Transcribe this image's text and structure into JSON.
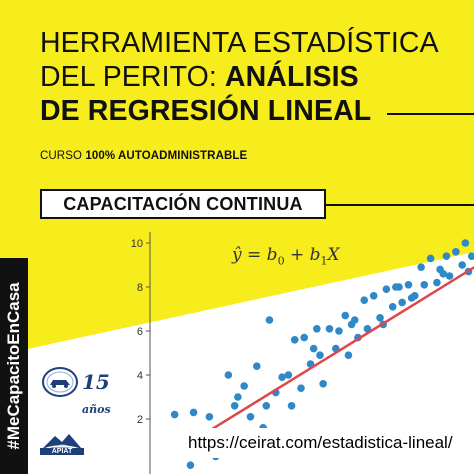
{
  "title": {
    "line1": "HERRAMIENTA ESTADÍSTICA",
    "line2_regular": "DEL PERITO: ",
    "line2_bold": "ANÁLISIS",
    "line3": "DE REGRESIÓN LINEAL"
  },
  "course": {
    "prefix": "CURSO ",
    "bold": "100% AUTOADMINISTRABLE"
  },
  "badge": "CAPACITACIÓN CONTINUA",
  "hashtag": "#MeCapacitoEnCasa",
  "url": "https://ceirat.com/estadistica-lineal/",
  "logos": {
    "anniversary_number": "15",
    "anniversary_word": "años",
    "org_name": "APIAT"
  },
  "formula": {
    "lhs": "ŷ",
    "eq": " = ",
    "b0": "b",
    "b0_sub": "0",
    "plus": " + ",
    "b1": "b",
    "b1_sub": "1",
    "x": "X"
  },
  "colors": {
    "accent_yellow": "#f7ec1c",
    "point_blue": "#2f88c7",
    "fit_line_red": "#e0474c",
    "ink": "#111111",
    "logo_blue": "#1d3f7a"
  },
  "chart_data": {
    "type": "scatter",
    "title": "",
    "xlabel": "",
    "ylabel": "",
    "yticks": [
      2,
      4,
      6,
      8,
      10
    ],
    "ylim": [
      -0.5,
      10.5
    ],
    "xlim": [
      0,
      10
    ],
    "grid": false,
    "series": [
      {
        "values_x": [
          0.4,
          0.9,
          1.0,
          1.5,
          1.7,
          2.0,
          2.1,
          2.3,
          2.5,
          2.6,
          2.8,
          3.0,
          3.2,
          3.3,
          3.4,
          3.6,
          3.8,
          4.0,
          4.1,
          4.2,
          4.4,
          4.5,
          4.7,
          4.9,
          5.0,
          5.1,
          5.3,
          5.5,
          5.6,
          5.8,
          5.9,
          6.1,
          6.2,
          6.4,
          6.5,
          6.7,
          6.9,
          7.0,
          7.1,
          7.3,
          7.4,
          7.6,
          7.8,
          7.9,
          8.0,
          8.2,
          8.3,
          8.5,
          8.7,
          8.8,
          9.0,
          9.1,
          9.3,
          9.5,
          9.6,
          9.8,
          2.4,
          4.8,
          6.0,
          7.5,
          8.9,
          9.7
        ],
        "values_y": [
          2.2,
          -0.1,
          2.3,
          2.1,
          0.3,
          1.2,
          4.0,
          2.6,
          1.3,
          3.5,
          2.1,
          4.4,
          1.6,
          2.6,
          6.5,
          3.2,
          3.9,
          4.0,
          2.6,
          5.6,
          3.4,
          5.7,
          4.5,
          6.1,
          4.9,
          3.6,
          6.1,
          5.2,
          6.0,
          6.7,
          4.9,
          6.5,
          5.7,
          7.4,
          6.1,
          7.6,
          6.6,
          6.3,
          7.9,
          7.1,
          8.0,
          7.3,
          8.1,
          7.5,
          7.6,
          8.9,
          8.1,
          9.3,
          8.2,
          8.8,
          9.4,
          8.5,
          9.6,
          9.0,
          10.0,
          9.4,
          3.0,
          5.2,
          6.3,
          8.0,
          8.6,
          8.7
        ]
      }
    ],
    "fit_line": {
      "x": [
        1.2,
        10.0
      ],
      "y": [
        1.2,
        9.0
      ]
    }
  }
}
